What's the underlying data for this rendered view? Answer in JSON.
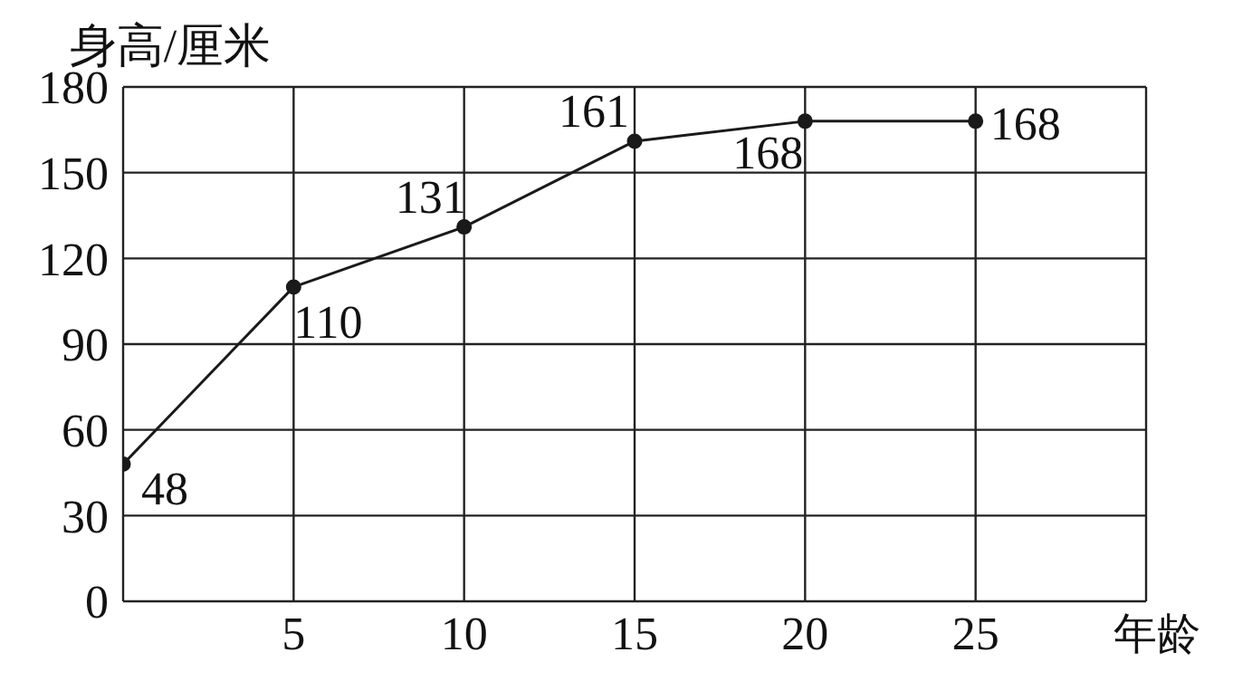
{
  "chart_data": {
    "type": "line",
    "ylabel": "身高/厘米",
    "xlabel": "年龄",
    "x": [
      0,
      5,
      10,
      15,
      20,
      25
    ],
    "series": [
      {
        "color": "#1a1a1a",
        "values": [
          48,
          110,
          131,
          161,
          168,
          168
        ]
      }
    ],
    "xlim": [
      0,
      30
    ],
    "xticks": [
      {
        "value": 0,
        "label": null
      },
      5,
      10,
      15,
      20,
      25,
      {
        "value": 30,
        "label": null
      }
    ],
    "ylim": [
      0,
      180
    ],
    "yticks": [
      0,
      30,
      60,
      90,
      120,
      150,
      180
    ],
    "grid": true,
    "marker": "circle",
    "line_style": "solid",
    "data_labels": true
  }
}
